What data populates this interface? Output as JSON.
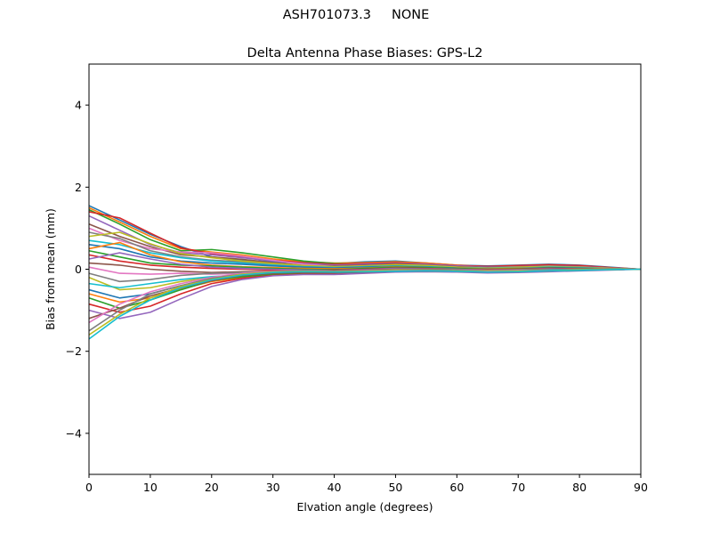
{
  "figure": {
    "suptitle": "ASH701073.3     NONE"
  },
  "chart_data": {
    "type": "line",
    "title": "Delta Antenna Phase Biases: GPS-L2",
    "xlabel": "Elvation angle (degrees)",
    "ylabel": "Bias from mean (mm)",
    "xlim": [
      0,
      90
    ],
    "ylim": [
      -5,
      5
    ],
    "xticks": [
      0,
      10,
      20,
      30,
      40,
      50,
      60,
      70,
      80,
      90
    ],
    "yticks": [
      -4,
      -2,
      0,
      2,
      4
    ],
    "ytick_labels": [
      "−4",
      "−2",
      "0",
      "2",
      "4"
    ],
    "grid": false,
    "legend": "none",
    "x": [
      0,
      5,
      10,
      15,
      20,
      25,
      30,
      35,
      40,
      45,
      50,
      55,
      60,
      65,
      70,
      75,
      80,
      85,
      90
    ],
    "colors": [
      "#1f77b4",
      "#ff7f0e",
      "#2ca02c",
      "#d62728",
      "#9467bd",
      "#8c564b",
      "#e377c2",
      "#7f7f7f",
      "#bcbd22",
      "#17becf"
    ],
    "series": [
      {
        "values": [
          1.55,
          1.2,
          0.85,
          0.55,
          0.3,
          0.22,
          0.18,
          0.15,
          0.14,
          0.18,
          0.2,
          0.15,
          0.1,
          0.08,
          0.1,
          0.12,
          0.1,
          0.05,
          0
        ]
      },
      {
        "values": [
          1.5,
          1.15,
          0.8,
          0.5,
          0.42,
          0.35,
          0.25,
          0.18,
          0.15,
          0.16,
          0.18,
          0.15,
          0.1,
          0.06,
          0.08,
          0.1,
          0.08,
          0.04,
          0
        ]
      },
      {
        "values": [
          1.45,
          1.1,
          0.72,
          0.45,
          0.48,
          0.4,
          0.3,
          0.2,
          0.14,
          0.12,
          0.15,
          0.12,
          0.08,
          0.05,
          0.07,
          0.09,
          0.07,
          0.03,
          0
        ]
      },
      {
        "values": [
          1.4,
          1.25,
          0.88,
          0.52,
          0.38,
          0.3,
          0.22,
          0.16,
          0.12,
          0.14,
          0.16,
          0.13,
          0.09,
          0.07,
          0.09,
          0.11,
          0.09,
          0.04,
          0
        ]
      },
      {
        "values": [
          1.3,
          0.95,
          0.6,
          0.4,
          0.35,
          0.28,
          0.2,
          0.14,
          0.1,
          0.12,
          0.14,
          0.12,
          0.08,
          0.05,
          0.06,
          0.08,
          0.06,
          0.03,
          0
        ]
      },
      {
        "values": [
          1.1,
          0.8,
          0.55,
          0.35,
          0.3,
          0.24,
          0.16,
          0.1,
          0.08,
          0.1,
          0.13,
          0.1,
          0.06,
          0.04,
          0.05,
          0.07,
          0.05,
          0.02,
          0
        ]
      },
      {
        "values": [
          1.0,
          0.7,
          0.5,
          0.42,
          0.4,
          0.32,
          0.22,
          0.12,
          0.06,
          0.08,
          0.1,
          0.08,
          0.05,
          0.03,
          0.04,
          0.06,
          0.05,
          0.02,
          0
        ]
      },
      {
        "values": [
          0.9,
          0.75,
          0.45,
          0.3,
          0.22,
          0.18,
          0.12,
          0.08,
          0.05,
          0.07,
          0.09,
          0.07,
          0.04,
          0.02,
          0.03,
          0.05,
          0.04,
          0.02,
          0
        ]
      },
      {
        "values": [
          0.8,
          0.9,
          0.62,
          0.38,
          0.28,
          0.2,
          0.14,
          0.09,
          0.06,
          0.08,
          0.11,
          0.09,
          0.05,
          0.03,
          0.05,
          0.07,
          0.05,
          0.02,
          0
        ]
      },
      {
        "values": [
          0.7,
          0.6,
          0.4,
          0.28,
          0.2,
          0.15,
          0.1,
          0.06,
          0.04,
          0.06,
          0.08,
          0.06,
          0.03,
          0.02,
          0.03,
          0.05,
          0.04,
          0.01,
          0
        ]
      },
      {
        "values": [
          0.6,
          0.5,
          0.3,
          0.2,
          0.15,
          0.12,
          0.08,
          0.05,
          0.03,
          0.05,
          0.07,
          0.05,
          0.03,
          0.01,
          0.02,
          0.04,
          0.03,
          0.01,
          0
        ]
      },
      {
        "values": [
          0.5,
          0.65,
          0.35,
          0.18,
          0.1,
          0.06,
          0.04,
          0.02,
          0.01,
          0.03,
          0.06,
          0.04,
          0.02,
          0.01,
          0.02,
          0.03,
          0.02,
          0.01,
          0
        ]
      },
      {
        "values": [
          0.45,
          0.3,
          0.15,
          0.1,
          0.08,
          0.05,
          0.02,
          0.0,
          -0.01,
          0.02,
          0.05,
          0.04,
          0.02,
          0.0,
          0.01,
          0.03,
          0.02,
          0.0,
          0
        ]
      },
      {
        "values": [
          0.35,
          0.2,
          0.1,
          0.05,
          0.02,
          0.0,
          -0.02,
          -0.03,
          -0.02,
          0.0,
          0.03,
          0.02,
          0.0,
          -0.01,
          0.0,
          0.02,
          0.01,
          0.0,
          0
        ]
      },
      {
        "values": [
          0.25,
          0.4,
          0.25,
          0.12,
          0.05,
          0.02,
          0.0,
          -0.02,
          -0.03,
          -0.01,
          0.02,
          0.01,
          0.0,
          -0.02,
          -0.01,
          0.01,
          0.0,
          0.0,
          0
        ]
      },
      {
        "values": [
          0.15,
          0.1,
          0.0,
          -0.05,
          -0.08,
          -0.06,
          -0.05,
          -0.05,
          -0.04,
          -0.02,
          0.0,
          0.0,
          -0.02,
          -0.03,
          -0.02,
          0.0,
          0.0,
          0.0,
          0
        ]
      },
      {
        "values": [
          0.05,
          -0.1,
          -0.12,
          -0.1,
          -0.12,
          -0.1,
          -0.08,
          -0.07,
          -0.06,
          -0.04,
          -0.02,
          -0.02,
          -0.03,
          -0.04,
          -0.03,
          -0.01,
          0.0,
          0.0,
          0
        ]
      },
      {
        "values": [
          -0.1,
          -0.3,
          -0.25,
          -0.15,
          -0.1,
          -0.08,
          -0.06,
          -0.05,
          -0.05,
          -0.03,
          -0.01,
          -0.01,
          -0.02,
          -0.03,
          -0.02,
          -0.01,
          0.0,
          0.0,
          0
        ]
      },
      {
        "values": [
          -0.2,
          -0.5,
          -0.45,
          -0.3,
          -0.2,
          -0.12,
          -0.08,
          -0.06,
          -0.06,
          -0.04,
          -0.02,
          -0.02,
          -0.03,
          -0.04,
          -0.03,
          -0.02,
          -0.01,
          0.0,
          0
        ]
      },
      {
        "values": [
          -0.35,
          -0.45,
          -0.35,
          -0.25,
          -0.18,
          -0.14,
          -0.1,
          -0.08,
          -0.07,
          -0.05,
          -0.03,
          -0.03,
          -0.04,
          -0.05,
          -0.04,
          -0.02,
          -0.01,
          0.0,
          0
        ]
      },
      {
        "values": [
          -0.5,
          -0.7,
          -0.6,
          -0.4,
          -0.25,
          -0.15,
          -0.1,
          -0.08,
          -0.08,
          -0.06,
          -0.04,
          -0.03,
          -0.04,
          -0.06,
          -0.05,
          -0.03,
          -0.02,
          -0.01,
          0
        ]
      },
      {
        "values": [
          -0.6,
          -0.8,
          -0.7,
          -0.48,
          -0.3,
          -0.2,
          -0.14,
          -0.1,
          -0.09,
          -0.07,
          -0.05,
          -0.04,
          -0.05,
          -0.06,
          -0.05,
          -0.04,
          -0.02,
          -0.01,
          0
        ]
      },
      {
        "values": [
          -0.7,
          -0.95,
          -0.75,
          -0.5,
          -0.28,
          -0.18,
          -0.12,
          -0.1,
          -0.1,
          -0.08,
          -0.05,
          -0.04,
          -0.05,
          -0.07,
          -0.06,
          -0.04,
          -0.03,
          -0.01,
          0
        ]
      },
      {
        "values": [
          -0.85,
          -1.05,
          -0.9,
          -0.6,
          -0.35,
          -0.22,
          -0.15,
          -0.12,
          -0.12,
          -0.09,
          -0.06,
          -0.05,
          -0.06,
          -0.08,
          -0.07,
          -0.05,
          -0.03,
          -0.01,
          0
        ]
      },
      {
        "values": [
          -1.0,
          -1.2,
          -1.05,
          -0.72,
          -0.42,
          -0.25,
          -0.16,
          -0.13,
          -0.13,
          -0.1,
          -0.07,
          -0.06,
          -0.07,
          -0.09,
          -0.08,
          -0.06,
          -0.04,
          -0.02,
          0
        ]
      },
      {
        "values": [
          -1.2,
          -0.95,
          -0.65,
          -0.45,
          -0.28,
          -0.15,
          -0.1,
          -0.08,
          -0.09,
          -0.07,
          -0.05,
          -0.04,
          -0.05,
          -0.07,
          -0.06,
          -0.04,
          -0.03,
          -0.01,
          0
        ]
      },
      {
        "values": [
          -1.3,
          -0.85,
          -0.55,
          -0.35,
          -0.2,
          -0.1,
          -0.05,
          -0.04,
          -0.05,
          -0.04,
          -0.03,
          -0.03,
          -0.04,
          -0.05,
          -0.04,
          -0.03,
          -0.02,
          -0.01,
          0
        ]
      },
      {
        "values": [
          -1.5,
          -1.0,
          -0.6,
          -0.4,
          -0.22,
          -0.12,
          -0.06,
          -0.04,
          -0.05,
          -0.05,
          -0.04,
          -0.03,
          -0.04,
          -0.06,
          -0.05,
          -0.03,
          -0.02,
          -0.01,
          0
        ]
      },
      {
        "values": [
          -1.6,
          -1.1,
          -0.7,
          -0.42,
          -0.25,
          -0.12,
          -0.07,
          -0.05,
          -0.06,
          -0.05,
          -0.04,
          -0.04,
          -0.05,
          -0.06,
          -0.05,
          -0.04,
          -0.02,
          -0.01,
          0
        ]
      },
      {
        "values": [
          -1.7,
          -1.15,
          -0.75,
          -0.45,
          -0.26,
          -0.14,
          -0.08,
          -0.06,
          -0.07,
          -0.06,
          -0.05,
          -0.04,
          -0.05,
          -0.07,
          -0.06,
          -0.04,
          -0.03,
          -0.01,
          0
        ]
      }
    ]
  }
}
